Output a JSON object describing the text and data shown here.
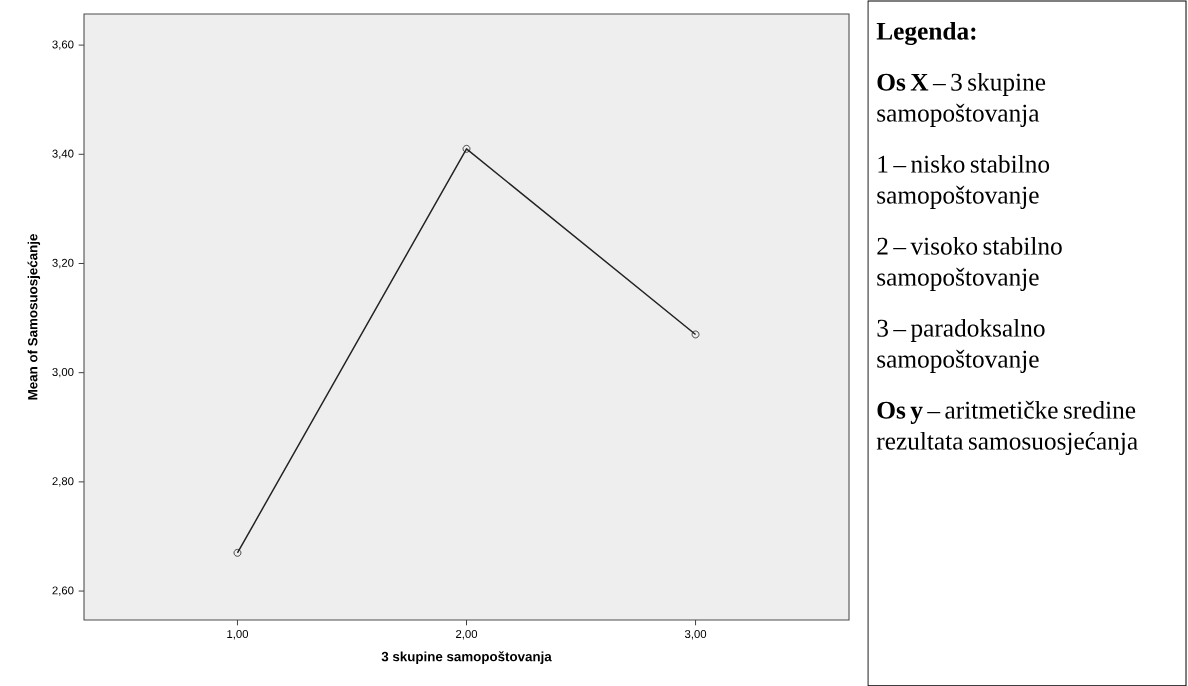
{
  "chart_data": {
    "type": "line",
    "xlabel": "3 skupine samopoštovanja",
    "ylabel": "Mean of Samosuosjećanje",
    "x": [
      1,
      2,
      3
    ],
    "series": [
      {
        "color": "#222222",
        "values": [
          2.67,
          3.41,
          3.07
        ]
      }
    ],
    "xlim": [
      0.33,
      3.67
    ],
    "ylim": [
      2.547,
      3.657
    ],
    "xticks": [
      {
        "value": 1,
        "label": "1,00"
      },
      {
        "value": 2,
        "label": "2,00"
      },
      {
        "value": 3,
        "label": "3,00"
      }
    ],
    "yticks": [
      {
        "value": 2.6,
        "label": "2,60"
      },
      {
        "value": 2.8,
        "label": "2,80"
      },
      {
        "value": 3.0,
        "label": "3,00"
      },
      {
        "value": 3.2,
        "label": "3,20"
      },
      {
        "value": 3.4,
        "label": "3,40"
      },
      {
        "value": 3.6,
        "label": "3,60"
      }
    ],
    "grid": false,
    "marker": "circle",
    "line_style": "solid",
    "annotations": [
      "**Legenda:**",
      "**Os X** – 3 skupine samopoštovanja",
      "1 – nisko stabilno samopoštovanje",
      "2 – visoko stabilno samopoštovanje",
      "3 – paradoksalno samopoštovanje",
      "**Os y** – aritmetičke sredine rezultata samosuosjećanja"
    ]
  }
}
